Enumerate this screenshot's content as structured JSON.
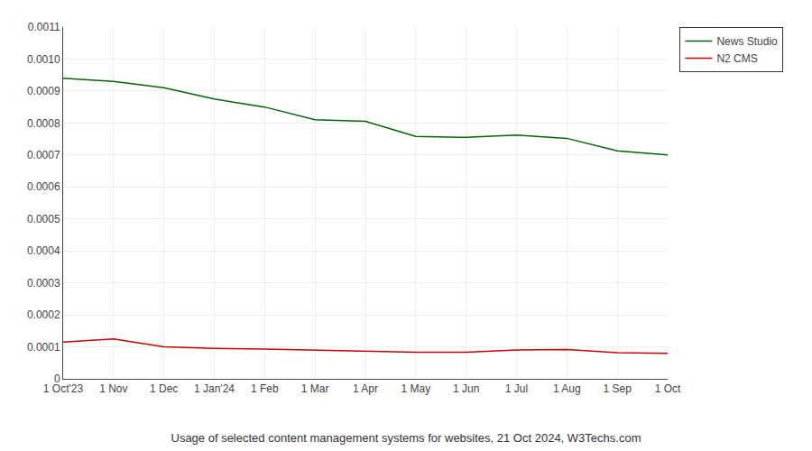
{
  "chart_data": {
    "type": "line",
    "title": "Usage of selected content management systems for websites, 21 Oct 2024, W3Techs.com",
    "categories": [
      "1 Oct'23",
      "1 Nov",
      "1 Dec",
      "1 Jan'24",
      "1 Feb",
      "1 Mar",
      "1 Apr",
      "1 May",
      "1 Jun",
      "1 Jul",
      "1 Aug",
      "1 Sep",
      "1 Oct"
    ],
    "series": [
      {
        "name": "News Studio",
        "color": "#006600",
        "values": [
          0.00094,
          0.00093,
          0.00091,
          0.000875,
          0.00085,
          0.00081,
          0.000805,
          0.000758,
          0.000755,
          0.000762,
          0.000752,
          0.000713,
          0.0007
        ]
      },
      {
        "name": "N2 CMS",
        "color": "#cc0000",
        "values": [
          0.000115,
          0.000125,
          0.0001,
          9.5e-05,
          9.3e-05,
          9e-05,
          8.8e-05,
          8.3e-05,
          8.3e-05,
          9e-05,
          9.2e-05,
          8.2e-05,
          8e-05
        ]
      }
    ],
    "ylim": [
      0,
      0.0011
    ],
    "yticks": [
      0,
      0.0001,
      0.0002,
      0.0003,
      0.0004,
      0.0005,
      0.0006,
      0.0007,
      0.0008,
      0.0009,
      {
        "value": 0.001,
        "label": "0.0010"
      },
      0.0011
    ],
    "grid": true,
    "legend": "right"
  }
}
